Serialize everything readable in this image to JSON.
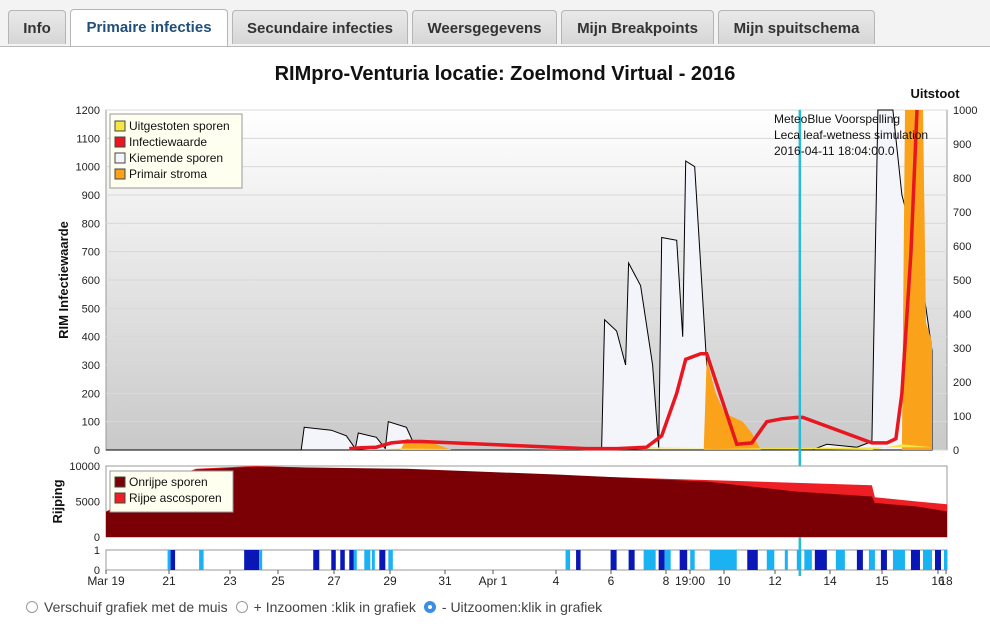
{
  "tabs": [
    {
      "label": "Info"
    },
    {
      "label": "Primaire infecties"
    },
    {
      "label": "Secundaire infecties"
    },
    {
      "label": "Weersgegevens"
    },
    {
      "label": "Mijn Breakpoints"
    },
    {
      "label": "Mijn spuitschema"
    }
  ],
  "chart": {
    "title": "RIMpro-Venturia locatie:  Zoelmond Virtual - 2016",
    "forecast_lines": [
      "MeteoBlue Voorspelling",
      "Leca leaf-wetness simulation",
      "2016-04-11 18:04:00.0"
    ],
    "right_label": "Uitstoot"
  },
  "chart_data": [
    {
      "type": "area",
      "ylabel": "RIM Infectiewaarde",
      "ylim": [
        0,
        1200
      ],
      "y2lim": [
        0,
        1000
      ],
      "yticks": [
        "1200",
        "1100",
        "1000",
        "900",
        "800",
        "700",
        "600",
        "500",
        "400",
        "300",
        "200",
        "100",
        "0"
      ],
      "y2ticks": [
        "1000",
        "900",
        "800",
        "700",
        "600",
        "500",
        "400",
        "300",
        "200",
        "100",
        "0"
      ],
      "legend": [
        "Uitgestoten sporen",
        "Infectiewaarde",
        "Kiemende sporen",
        "Primair stroma"
      ],
      "colors": {
        "uitgestoten": "#f5e642",
        "infectie": "#e8161f",
        "kiemend": "#f4f4fb",
        "stroma": "#f9a21a"
      },
      "kiemende_sporen": [
        [
          0,
          0
        ],
        [
          6.5,
          0
        ],
        [
          6.6,
          80
        ],
        [
          7.5,
          70
        ],
        [
          8,
          50
        ],
        [
          8.3,
          5
        ],
        [
          8.4,
          60
        ],
        [
          9,
          45
        ],
        [
          9.3,
          5
        ],
        [
          9.4,
          100
        ],
        [
          10,
          80
        ],
        [
          10.3,
          10
        ],
        [
          10.5,
          10
        ],
        [
          11.5,
          0
        ],
        [
          16.5,
          0
        ],
        [
          16.6,
          460
        ],
        [
          17,
          420
        ],
        [
          17.3,
          300
        ],
        [
          17.4,
          660
        ],
        [
          17.8,
          580
        ],
        [
          18.2,
          300
        ],
        [
          18.4,
          5
        ],
        [
          18.5,
          750
        ],
        [
          19,
          740
        ],
        [
          19.2,
          400
        ],
        [
          19.3,
          1020
        ],
        [
          19.6,
          1000
        ],
        [
          20,
          300
        ],
        [
          20.4,
          30
        ],
        [
          21.5,
          0
        ],
        [
          23.5,
          0
        ],
        [
          24,
          20
        ],
        [
          25,
          10
        ],
        [
          25.5,
          30
        ],
        [
          25.7,
          1200
        ],
        [
          26.2,
          1200
        ],
        [
          26.5,
          900
        ],
        [
          27,
          700
        ],
        [
          27.3,
          500
        ],
        [
          27.5,
          350
        ],
        [
          27.5,
          0
        ]
      ],
      "primair_stroma": [
        [
          9.8,
          0
        ],
        [
          10,
          40
        ],
        [
          10.5,
          30
        ],
        [
          11,
          20
        ],
        [
          11.5,
          0
        ],
        [
          19.9,
          0
        ],
        [
          20,
          320
        ],
        [
          20.3,
          200
        ],
        [
          20.6,
          130
        ],
        [
          21.2,
          100
        ],
        [
          21.5,
          60
        ],
        [
          21.8,
          0
        ],
        [
          26.5,
          0
        ],
        [
          26.6,
          1200
        ],
        [
          27.2,
          1200
        ],
        [
          27.3,
          450
        ],
        [
          27.5,
          380
        ],
        [
          27.5,
          0
        ]
      ],
      "infectiewaarde": [
        [
          8.1,
          5
        ],
        [
          8.5,
          8
        ],
        [
          9,
          10
        ],
        [
          9.5,
          25
        ],
        [
          10,
          30
        ],
        [
          10.5,
          30
        ],
        [
          16,
          5
        ],
        [
          17,
          5
        ],
        [
          18,
          10
        ],
        [
          18.5,
          50
        ],
        [
          19,
          200
        ],
        [
          19.3,
          320
        ],
        [
          19.8,
          340
        ],
        [
          20,
          340
        ],
        [
          21,
          20
        ],
        [
          21.5,
          25
        ],
        [
          22,
          100
        ],
        [
          22.5,
          110
        ],
        [
          23,
          115
        ],
        [
          23.2,
          115
        ],
        [
          25.5,
          25
        ],
        [
          26,
          25
        ],
        [
          26.3,
          40
        ],
        [
          26.5,
          200
        ],
        [
          26.8,
          700
        ],
        [
          27,
          1200
        ]
      ],
      "uitgestoten_sporen": [
        [
          8.5,
          0
        ],
        [
          9,
          3
        ],
        [
          9.8,
          5
        ],
        [
          16.5,
          0
        ],
        [
          17,
          5
        ],
        [
          18,
          10
        ],
        [
          19,
          8
        ],
        [
          25.5,
          0
        ],
        [
          26.5,
          20
        ],
        [
          27.5,
          10
        ]
      ],
      "forecast_day": 23.1
    },
    {
      "type": "area",
      "ylabel": "Rijping",
      "ylim": [
        0,
        10000
      ],
      "yticks": [
        "10000",
        "5000",
        "0"
      ],
      "legend": [
        "Onrijpe sporen",
        "Rijpe ascosporen"
      ],
      "colors": {
        "onrijp": "#7a0006",
        "rijp": "#ee1f24"
      },
      "onrijpe_sporen": [
        [
          0,
          3500
        ],
        [
          0.5,
          4500
        ],
        [
          2,
          8000
        ],
        [
          3,
          9500
        ],
        [
          5,
          9900
        ],
        [
          10,
          9600
        ],
        [
          15,
          8800
        ],
        [
          20,
          7800
        ],
        [
          23,
          6400
        ],
        [
          25.5,
          5700
        ],
        [
          25.6,
          4800
        ],
        [
          27,
          4300
        ],
        [
          28,
          3600
        ]
      ],
      "totaal": [
        [
          0,
          3600
        ],
        [
          0.5,
          4600
        ],
        [
          2,
          8100
        ],
        [
          3,
          9600
        ],
        [
          5,
          10000
        ],
        [
          28,
          10000
        ],
        [
          25.5,
          7300
        ],
        [
          25.6,
          5600
        ],
        [
          27,
          5000
        ],
        [
          28,
          4600
        ]
      ]
    },
    {
      "type": "heatmap",
      "ylim": [
        0,
        1
      ],
      "yticks": [
        "1",
        "0"
      ],
      "colors": {
        "light": "#1bb2f2",
        "dark": "#0a16b5"
      },
      "segments": [
        [
          2.05,
          2.15,
          "light"
        ],
        [
          2.15,
          2.3,
          "dark"
        ],
        [
          3.1,
          3.25,
          "light"
        ],
        [
          4.6,
          5.1,
          "dark"
        ],
        [
          5.1,
          5.2,
          "light"
        ],
        [
          6.9,
          7.1,
          "dark"
        ],
        [
          7.5,
          7.65,
          "dark"
        ],
        [
          7.8,
          7.95,
          "dark"
        ],
        [
          8.1,
          8.25,
          "dark"
        ],
        [
          8.25,
          8.35,
          "light"
        ],
        [
          8.6,
          8.8,
          "light"
        ],
        [
          8.85,
          8.95,
          "light"
        ],
        [
          9.1,
          9.3,
          "dark"
        ],
        [
          9.4,
          9.55,
          "light"
        ],
        [
          15.3,
          15.45,
          "light"
        ],
        [
          15.65,
          15.8,
          "dark"
        ],
        [
          16.8,
          17.0,
          "dark"
        ],
        [
          17.4,
          17.6,
          "dark"
        ],
        [
          17.9,
          18.3,
          "light"
        ],
        [
          18.4,
          18.6,
          "dark"
        ],
        [
          18.6,
          18.8,
          "light"
        ],
        [
          19.1,
          19.35,
          "dark"
        ],
        [
          19.45,
          19.6,
          "light"
        ],
        [
          20.1,
          21.0,
          "light"
        ],
        [
          21.35,
          21.7,
          "dark"
        ],
        [
          22.0,
          22.25,
          "light"
        ],
        [
          22.6,
          22.7,
          "light"
        ],
        [
          23.0,
          23.15,
          "light"
        ],
        [
          23.25,
          23.5,
          "light"
        ],
        [
          23.6,
          24.0,
          "dark"
        ],
        [
          24.3,
          24.6,
          "light"
        ],
        [
          25.0,
          25.2,
          "dark"
        ],
        [
          25.4,
          25.6,
          "light"
        ],
        [
          25.8,
          26.0,
          "dark"
        ],
        [
          26.2,
          26.6,
          "light"
        ],
        [
          26.8,
          27.1,
          "dark"
        ],
        [
          27.2,
          27.5,
          "light"
        ],
        [
          27.6,
          27.8,
          "dark"
        ],
        [
          27.9,
          28.0,
          "light"
        ]
      ],
      "xticks": [
        {
          "day": 0,
          "label": "Mar 19"
        },
        {
          "day": 2,
          "label": "21"
        },
        {
          "day": 4,
          "label": "23"
        },
        {
          "day": 6,
          "label": "25"
        },
        {
          "day": 8,
          "label": "27"
        },
        {
          "day": 10,
          "label": "29"
        },
        {
          "day": 12,
          "label": "31"
        },
        {
          "day": 13.4,
          "label": "Apr 1"
        },
        {
          "day": 16,
          "label": "4"
        },
        {
          "day": 18,
          "label": "6"
        },
        {
          "day": 20,
          "label": "8"
        },
        {
          "day": 20.9,
          "label": "19:00"
        },
        {
          "day": 22,
          "label": "10"
        },
        {
          "day": 24,
          "label": "12"
        },
        {
          "day": 26,
          "label": "14"
        },
        {
          "day": 27,
          "label": "15"
        },
        {
          "day": 30,
          "label": "16"
        },
        {
          "day": 32,
          "label": "18"
        }
      ]
    }
  ],
  "controls": [
    {
      "label": "Verschuif grafiek met de muis",
      "selected": false
    },
    {
      "label": "+ Inzoomen :klik in grafiek",
      "selected": false
    },
    {
      "label": "- Uitzoomen:klik in grafiek",
      "selected": true
    }
  ]
}
